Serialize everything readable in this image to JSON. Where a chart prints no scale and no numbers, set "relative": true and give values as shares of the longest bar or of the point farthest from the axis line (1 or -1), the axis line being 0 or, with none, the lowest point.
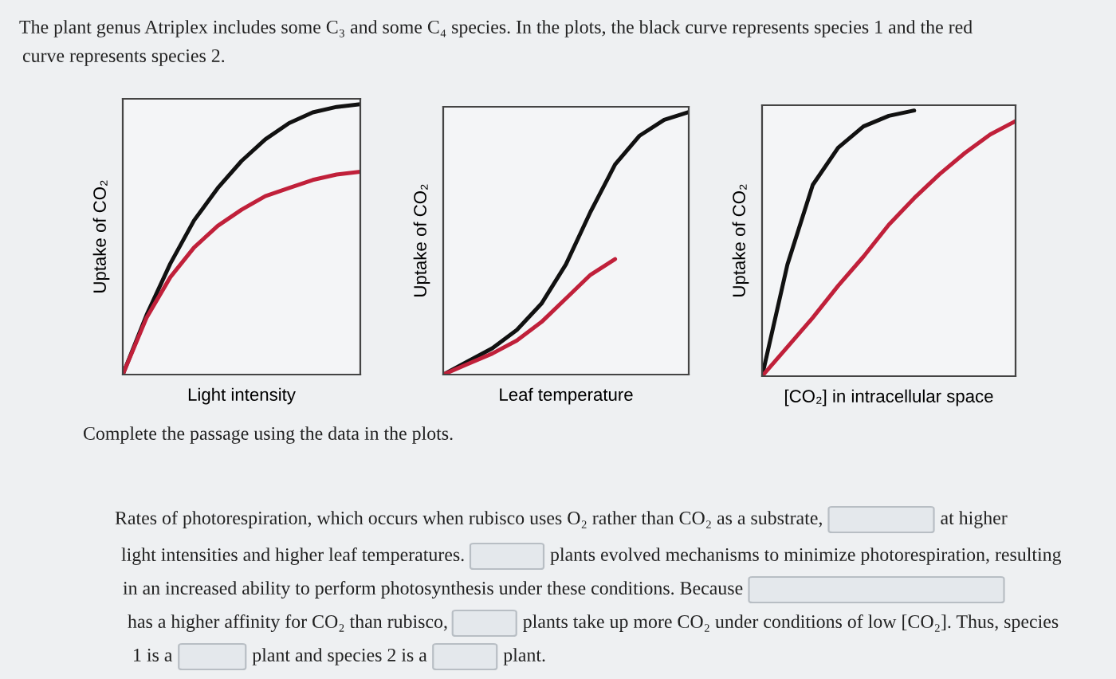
{
  "chart_data": [
    {
      "type": "line",
      "relative": true,
      "xlabel": "Light intensity",
      "ylabel": "Uptake of CO₂",
      "categories": [
        null,
        null,
        null,
        null,
        null,
        null,
        null,
        null,
        null,
        null,
        null
      ],
      "marker": "none",
      "line_style": "solid",
      "series": [
        {
          "color": "#111111",
          "values": [
            0,
            0.22,
            0.41,
            0.57,
            0.69,
            0.79,
            0.87,
            0.93,
            0.97,
            0.99,
            1.0
          ]
        },
        {
          "color": "#c0203a",
          "values": [
            0,
            0.21,
            0.36,
            0.47,
            0.55,
            0.61,
            0.66,
            0.69,
            0.72,
            0.74,
            0.75
          ]
        }
      ]
    },
    {
      "type": "line",
      "relative": true,
      "xlabel": "Leaf temperature",
      "ylabel": "Uptake of CO₂",
      "categories": [
        null,
        null,
        null,
        null,
        null,
        null,
        null,
        null,
        null,
        null,
        null
      ],
      "marker": "none",
      "line_style": "solid",
      "series": [
        {
          "color": "#111111",
          "values": [
            0,
            0.05,
            0.1,
            0.17,
            0.27,
            0.42,
            0.62,
            0.8,
            0.91,
            0.97,
            1.0
          ]
        },
        {
          "color": "#c0203a",
          "values": [
            0,
            0.04,
            0.08,
            0.13,
            0.2,
            0.29,
            0.38,
            0.44,
            null,
            null,
            null
          ]
        }
      ]
    },
    {
      "type": "line",
      "relative": true,
      "xlabel": "[CO₂] in intracellular space",
      "ylabel": "Uptake of CO₂",
      "categories": [
        null,
        null,
        null,
        null,
        null,
        null,
        null,
        null,
        null,
        null,
        null
      ],
      "marker": "none",
      "line_style": "solid",
      "series": [
        {
          "color": "#111111",
          "values": [
            0,
            0.42,
            0.72,
            0.86,
            0.94,
            0.98,
            1.0,
            null,
            null,
            null,
            null
          ]
        },
        {
          "color": "#c0203a",
          "values": [
            0,
            0.11,
            0.22,
            0.34,
            0.45,
            0.57,
            0.67,
            0.76,
            0.84,
            0.91,
            0.96
          ]
        }
      ]
    },
    {
      "type": "other",
      "annotations": [
        "The plant genus Atriplex includes some C₃ and some C₄ species. In the plots, the black curve represents species 1 and the red",
        "curve represents species 2.",
        "Complete the passage using the data in the plots.",
        "Rates of photorespiration, which occurs when rubisco uses O₂ rather than CO₂ as a substrate,",
        "at higher",
        "light intensities and higher leaf temperatures.",
        "plants evolved mechanisms to minimize photorespiration, resulting",
        "in an increased ability to perform photosynthesis under these conditions. Because",
        "has a higher affinity for CO₂ than rubisco,",
        "plants take up more CO₂ under conditions of low [CO₂]. Thus, species",
        "1 is a",
        "plant and species 2 is a",
        "plant."
      ]
    }
  ]
}
